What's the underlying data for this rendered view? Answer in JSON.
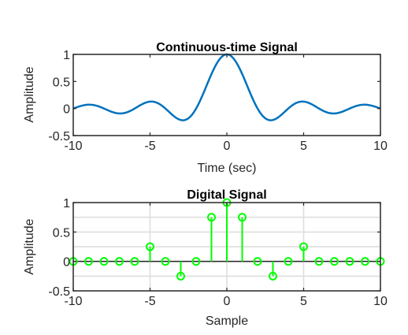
{
  "chart_data": [
    {
      "type": "line",
      "title": "Continuous-time Signal",
      "xlabel": "Time (sec)",
      "ylabel": "Amplitude",
      "xlim": [
        -10,
        10
      ],
      "ylim": [
        -0.5,
        1
      ],
      "xticks": [
        "-10",
        "-5",
        "0",
        "5",
        "10"
      ],
      "yticks": [
        "-0.5",
        "0",
        "0.5",
        "1"
      ],
      "grid": false,
      "function": "sinc(0.5·t)",
      "series": [
        {
          "color": "#0072BD",
          "x": [
            -10,
            -9,
            -8,
            -7,
            -6,
            -5,
            -4,
            -3,
            -2,
            -1,
            0,
            1,
            2,
            3,
            4,
            5,
            6,
            7,
            8,
            9,
            10
          ],
          "y": [
            0,
            0.07,
            0,
            -0.09,
            0,
            0.13,
            0,
            -0.21,
            0,
            0.64,
            1,
            0.64,
            0,
            -0.21,
            0,
            0.13,
            0,
            -0.09,
            0,
            0.07,
            0
          ]
        }
      ]
    },
    {
      "type": "stem",
      "title": "Digital Signal",
      "xlabel": "Sample",
      "ylabel": "Amplitude",
      "xlim": [
        -10,
        10
      ],
      "ylim": [
        -0.5,
        1
      ],
      "xticks": [
        "-10",
        "-5",
        "0",
        "5",
        "10"
      ],
      "yticks": [
        "-0.5",
        "0",
        "0.5",
        "1"
      ],
      "grid": true,
      "grid_y": [
        -0.25,
        0.25,
        0.75
      ],
      "series": [
        {
          "color": "#00FF00",
          "x": [
            -10,
            -9,
            -8,
            -7,
            -6,
            -5,
            -4,
            -3,
            -2,
            -1,
            0,
            1,
            2,
            3,
            4,
            5,
            6,
            7,
            8,
            9,
            10
          ],
          "y": [
            0,
            0,
            0,
            0,
            0,
            0.25,
            0,
            -0.25,
            0,
            0.75,
            1,
            0.75,
            0,
            -0.25,
            0,
            0.25,
            0,
            0,
            0,
            0,
            0
          ]
        }
      ]
    }
  ]
}
